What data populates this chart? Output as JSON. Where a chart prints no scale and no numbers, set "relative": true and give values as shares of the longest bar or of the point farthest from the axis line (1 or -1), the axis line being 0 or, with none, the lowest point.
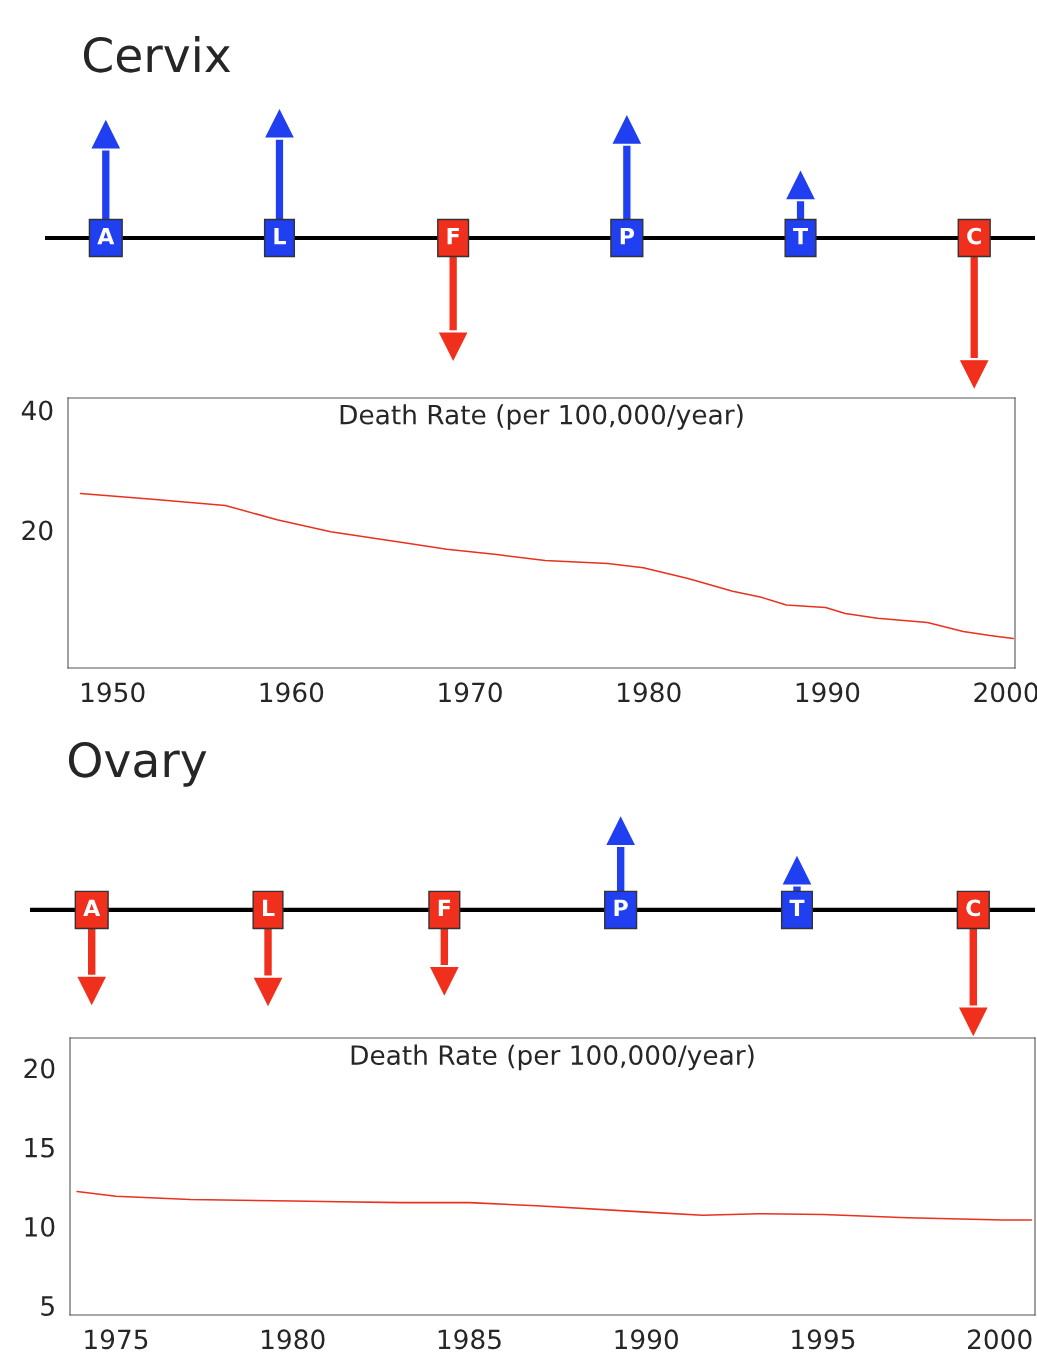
{
  "chart_data": [
    {
      "type": "bar",
      "title": "Cervix",
      "relative": true,
      "categories": [
        "A",
        "L",
        "F",
        "P",
        "T",
        "C"
      ],
      "values": [
        0.73,
        0.82,
        -0.77,
        0.77,
        0.31,
        -1
      ],
      "colors": [
        "#1f3ff0",
        "#1f3ff0",
        "#f0301c",
        "#1f3ff0",
        "#1f3ff0",
        "#f0301c"
      ]
    },
    {
      "type": "line",
      "title": "Death Rate (per 100,000/year)",
      "xlim": [
        1947.5,
        2000.5
      ],
      "ylim": [
        -3,
        42
      ],
      "xticks": [
        1950,
        1960,
        1970,
        1980,
        1990,
        2000
      ],
      "yticks": [
        20,
        40
      ],
      "grid": false,
      "legend": false,
      "series": [
        {
          "color": "#e8321e",
          "x": [
            1948.2,
            1952.4,
            1956.3,
            1959.2,
            1962.2,
            1966.5,
            1968.7,
            1971.5,
            1974.2,
            1977.7,
            1979.7,
            1982.2,
            1984.7,
            1986.3,
            1987.7,
            1989.9,
            1991.0,
            1992.8,
            1995.6,
            1997.6,
            1999.1,
            2000.4
          ],
          "values": [
            26.1,
            25.1,
            24.1,
            21.7,
            19.7,
            17.8,
            16.8,
            15.9,
            14.9,
            14.4,
            13.7,
            11.9,
            9.8,
            8.8,
            7.5,
            7.1,
            6.1,
            5.3,
            4.6,
            3.1,
            2.4,
            1.9
          ]
        }
      ]
    },
    {
      "type": "bar",
      "title": "Ovary",
      "relative": true,
      "categories": [
        "A",
        "L",
        "F",
        "P",
        "T",
        "C"
      ],
      "values": [
        -0.68,
        -0.69,
        -0.58,
        0.66,
        0.25,
        -1
      ],
      "colors": [
        "#f0301c",
        "#f0301c",
        "#f0301c",
        "#1f3ff0",
        "#1f3ff0",
        "#f0301c"
      ]
    },
    {
      "type": "line",
      "title": "Death Rate (per 100,000/year)",
      "xlim": [
        1973.7,
        2001.0
      ],
      "ylim": [
        4.4,
        21.9
      ],
      "xticks": [
        1975,
        1980,
        1985,
        1990,
        1995,
        2000
      ],
      "yticks": [
        5,
        10,
        15,
        20
      ],
      "grid": false,
      "legend": false,
      "series": [
        {
          "color": "#e8321e",
          "x": [
            1973.9,
            1975.0,
            1977.1,
            1980.0,
            1981.3,
            1983.1,
            1985.0,
            1986.9,
            1990.0,
            1991.6,
            1993.2,
            1995.0,
            1997.4,
            2000.1,
            2000.9
          ],
          "values": [
            12.2,
            11.9,
            11.7,
            11.6,
            11.55,
            11.5,
            11.5,
            11.3,
            10.9,
            10.7,
            10.8,
            10.75,
            10.55,
            10.4,
            10.4
          ]
        }
      ]
    }
  ]
}
